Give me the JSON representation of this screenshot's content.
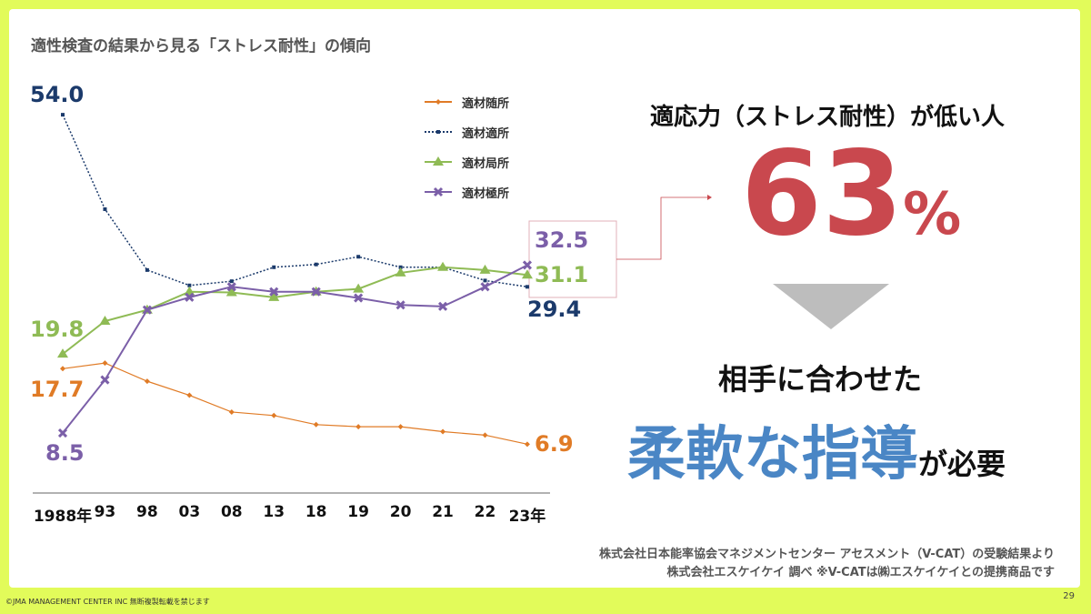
{
  "title": "適性検査の結果から見る「ストレス耐性」の傾向",
  "chart_data": {
    "type": "line",
    "title": "適性検査の結果から見る「ストレス耐性」の傾向",
    "categories": [
      "1988年",
      "93",
      "98",
      "03",
      "08",
      "13",
      "18",
      "19",
      "20",
      "21",
      "22",
      "23年"
    ],
    "legend_position": "top-right",
    "ylim": [
      0,
      60
    ],
    "series": [
      {
        "name": "適材随所",
        "color": "#e07b26",
        "marker": "diamond",
        "values": [
          17.7,
          18.5,
          15.9,
          13.9,
          11.5,
          11.0,
          9.7,
          9.4,
          9.4,
          8.7,
          8.2,
          6.9
        ],
        "labels": {
          "first": "17.7",
          "last": "6.9"
        }
      },
      {
        "name": "適材適所",
        "color": "#1b3a6b",
        "marker": "square",
        "dash": true,
        "values": [
          54.0,
          40.5,
          31.8,
          29.6,
          30.2,
          32.2,
          32.6,
          33.7,
          32.2,
          32.2,
          30.3,
          29.4
        ],
        "labels": {
          "first": "54.0",
          "last": "29.4"
        }
      },
      {
        "name": "適材局所",
        "color": "#8fbb55",
        "marker": "triangle",
        "values": [
          19.8,
          24.5,
          26.1,
          28.7,
          28.6,
          27.9,
          28.7,
          29.1,
          31.4,
          32.2,
          31.8,
          31.1
        ],
        "labels": {
          "first": "19.8",
          "last": "31.1"
        }
      },
      {
        "name": "適材極所",
        "color": "#7b5fa8",
        "marker": "x",
        "values": [
          8.5,
          16.1,
          26.1,
          27.9,
          29.4,
          28.7,
          28.7,
          27.8,
          26.8,
          26.6,
          29.4,
          32.5
        ],
        "labels": {
          "first": "8.5",
          "last": "32.5"
        }
      }
    ]
  },
  "callout": {
    "headline": "適応力（ストレス耐性）が低い人",
    "value": "63",
    "unit": "%",
    "line2": "相手に合わせた",
    "emphasis": "柔軟な指導",
    "suffix": "が必要"
  },
  "source": [
    "株式会社日本能率協会マネジメントセンター アセスメント（V-CAT）の受験結果より",
    "株式会社エスケイケイ 調べ ※V-CATは㈱エスケイケイとの提携商品です"
  ],
  "footer": {
    "copyright": "©JMA MANAGEMENT CENTER INC 無断複製転載を禁じます",
    "page": "29"
  }
}
